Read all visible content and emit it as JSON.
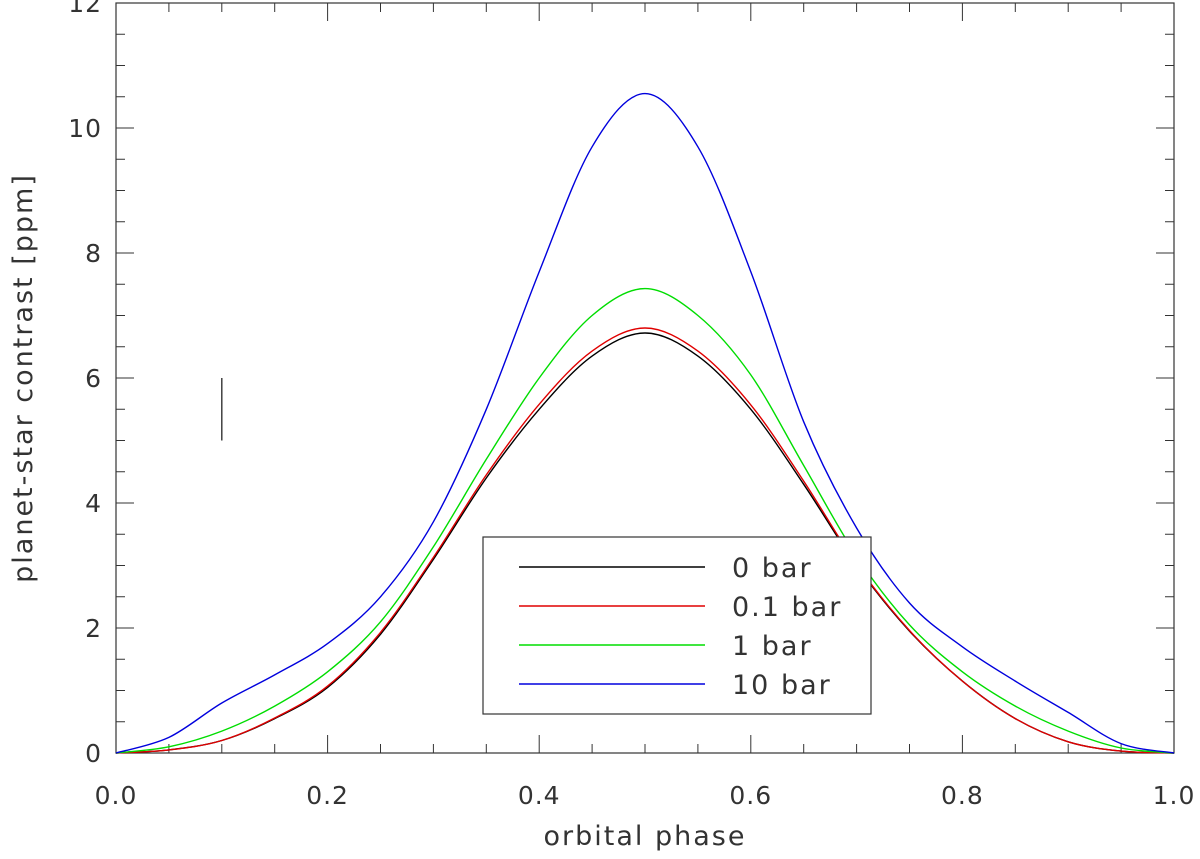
{
  "chart_data": {
    "type": "line",
    "title": "",
    "xlabel": "orbital phase",
    "ylabel": "planet-star contrast [ppm]",
    "xlim": [
      0.0,
      1.0
    ],
    "ylim": [
      0,
      12
    ],
    "x_ticks": [
      "0.0",
      "0.2",
      "0.4",
      "0.6",
      "0.8",
      "1.0"
    ],
    "y_ticks": [
      "0",
      "2",
      "4",
      "6",
      "8",
      "10",
      "12"
    ],
    "grid": false,
    "legend_position": "bottom-center",
    "x": [
      0.0,
      0.05,
      0.1,
      0.15,
      0.2,
      0.25,
      0.3,
      0.35,
      0.4,
      0.45,
      0.5,
      0.55,
      0.6,
      0.65,
      0.7,
      0.75,
      0.8,
      0.85,
      0.9,
      0.95,
      1.0
    ],
    "series": [
      {
        "name": "0 bar",
        "color": "#000000",
        "values": [
          0.0,
          0.05,
          0.2,
          0.55,
          1.05,
          1.9,
          3.1,
          4.4,
          5.5,
          6.35,
          6.72,
          6.35,
          5.5,
          4.3,
          3.0,
          1.95,
          1.15,
          0.55,
          0.18,
          0.03,
          0.0
        ]
      },
      {
        "name": "0.1 bar",
        "color": "#e00000",
        "values": [
          0.0,
          0.05,
          0.2,
          0.56,
          1.07,
          1.93,
          3.13,
          4.45,
          5.58,
          6.43,
          6.8,
          6.43,
          5.57,
          4.35,
          3.02,
          1.96,
          1.15,
          0.55,
          0.18,
          0.03,
          0.0
        ]
      },
      {
        "name": "1 bar",
        "color": "#00dd00",
        "values": [
          0.0,
          0.1,
          0.35,
          0.75,
          1.3,
          2.1,
          3.3,
          4.7,
          6.0,
          7.0,
          7.43,
          7.0,
          6.05,
          4.6,
          3.15,
          2.05,
          1.3,
          0.75,
          0.35,
          0.08,
          0.0
        ]
      },
      {
        "name": "10 bar",
        "color": "#0000dd",
        "values": [
          0.0,
          0.25,
          0.8,
          1.25,
          1.75,
          2.5,
          3.7,
          5.5,
          7.7,
          9.7,
          10.55,
          9.7,
          7.7,
          5.3,
          3.6,
          2.4,
          1.7,
          1.15,
          0.65,
          0.15,
          0.0
        ]
      }
    ],
    "annotations": [
      {
        "type": "vertical-bar",
        "x": 0.1,
        "y_from": 5.0,
        "y_to": 6.0
      }
    ]
  }
}
